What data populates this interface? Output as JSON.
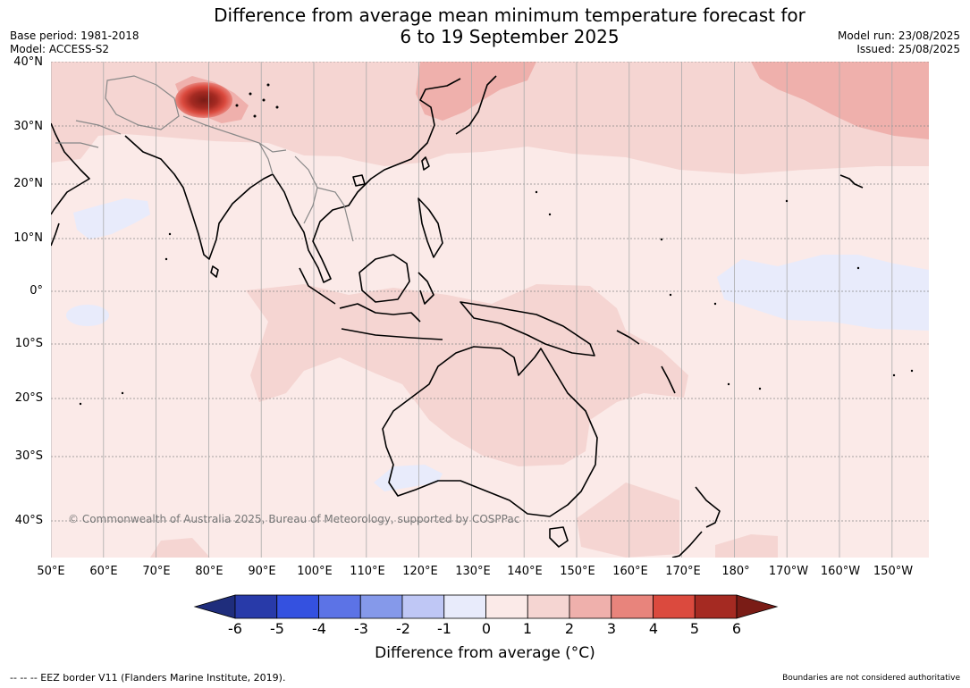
{
  "header": {
    "title_line1": "Difference from average mean minimum temperature forecast for",
    "title_line2": "6 to 19 September 2025",
    "base_period": "Base period: 1981-2018",
    "model": "Model: ACCESS-S2",
    "model_run": "Model run: 23/08/2025",
    "issued": "Issued: 25/08/2025"
  },
  "map": {
    "lat_labels": [
      "40°N",
      "30°N",
      "20°N",
      "10°N",
      "0°",
      "10°S",
      "20°S",
      "30°S",
      "40°S"
    ],
    "lon_labels": [
      "50°E",
      "60°E",
      "70°E",
      "80°E",
      "90°E",
      "100°E",
      "110°E",
      "120°E",
      "130°E",
      "140°E",
      "150°E",
      "160°E",
      "170°E",
      "180°",
      "170°W",
      "160°W",
      "150°W"
    ],
    "copyright": "© Commonwealth of Australia 2025, Bureau of Meteorology, supported by COSPPac",
    "colors": {
      "ocean_0_1": "#fbeae8",
      "band_1_2": "#f5d5d2",
      "band_2_3": "#efb0ac",
      "band_3_4": "#e8847c",
      "band_4_5": "#db4a3e",
      "band_5_6": "#a52a22",
      "band_m1_0": "#e8ebfb",
      "band_m2_m1": "#bfc7f5"
    }
  },
  "colorbar": {
    "ticks": [
      "-6",
      "-5",
      "-4",
      "-3",
      "-2",
      "-1",
      "0",
      "1",
      "2",
      "3",
      "4",
      "5",
      "6"
    ],
    "colors": [
      "#1f2d7c",
      "#283aa9",
      "#3451e0",
      "#5c73e6",
      "#8599ea",
      "#bfc7f5",
      "#e8ebfb",
      "#fbeae8",
      "#f5d5d2",
      "#efb0ac",
      "#e8847c",
      "#db4a3e",
      "#a52a22",
      "#7a1c16"
    ],
    "label": "Difference from average (°C)"
  },
  "footer": {
    "eez_note": "-- -- -- EEZ border V11 (Flanders Marine Institute, 2019).",
    "boundaries_note": "Boundaries are not considered authoritative"
  }
}
